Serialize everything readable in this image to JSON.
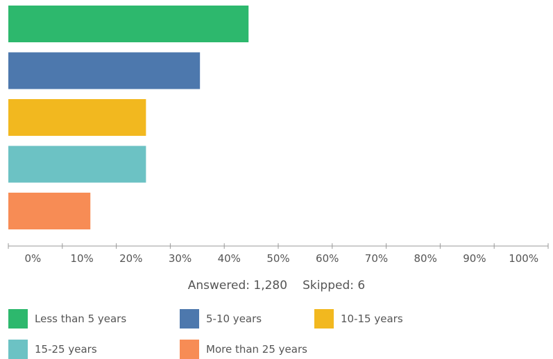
{
  "chart_data": {
    "type": "bar",
    "orientation": "horizontal",
    "categories": [
      "Less than 5 years",
      "5-10 years",
      "10-15 years",
      "15-25 years",
      "More than 25 years"
    ],
    "values": [
      44.5,
      35.5,
      25.5,
      25.5,
      15.2
    ],
    "colors": [
      "#2db86d",
      "#4d78ad",
      "#f2b81f",
      "#6cc2c4",
      "#f78c55"
    ],
    "xlim": [
      0,
      100
    ],
    "ticks": [
      "0%",
      "10%",
      "20%",
      "30%",
      "40%",
      "50%",
      "60%",
      "70%",
      "80%",
      "90%",
      "100%"
    ],
    "grid": false,
    "legend": "bottom"
  },
  "summary": {
    "answered_label": "Answered:",
    "answered_value": "1,280",
    "skipped_label": "Skipped:",
    "skipped_value": "6"
  }
}
